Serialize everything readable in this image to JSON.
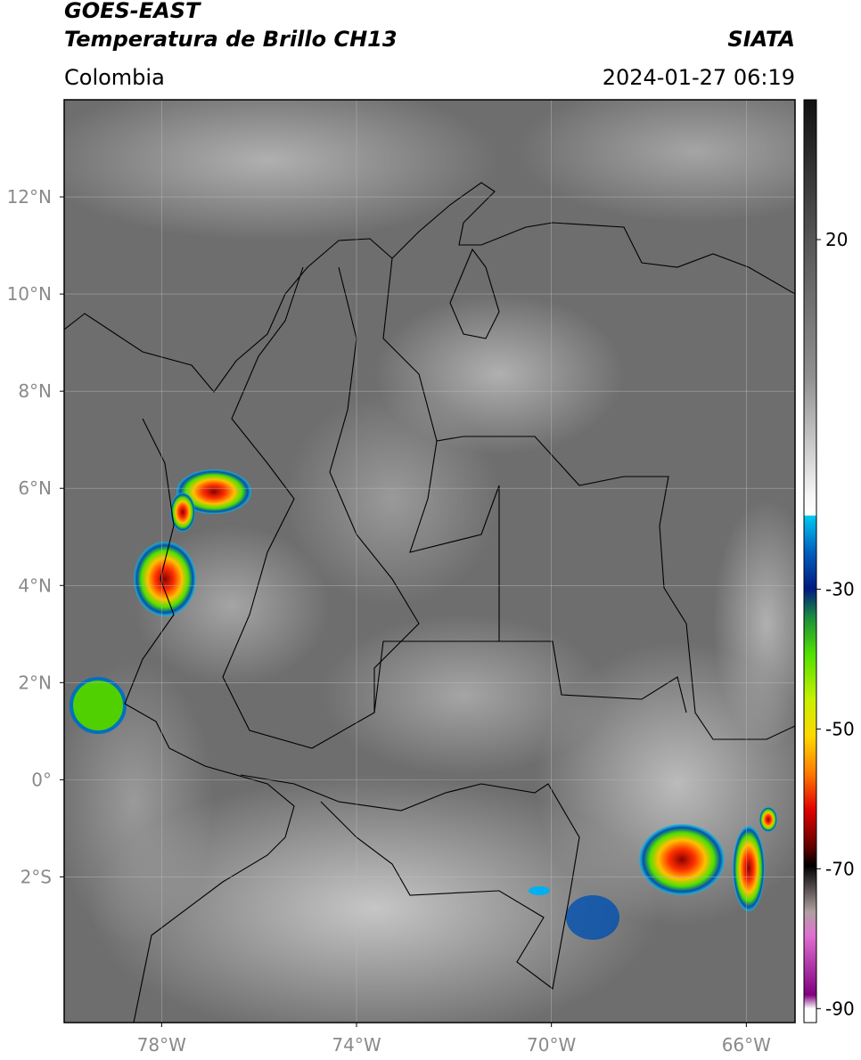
{
  "chart_data": {
    "type": "map",
    "title": "GOES-EAST",
    "subtitle": "Temperatura de Brillo CH13",
    "source": "SIATA",
    "region": "Colombia",
    "datetime": "2024-01-27 06:19",
    "xlim": [
      -80,
      -65
    ],
    "ylim": [
      -5,
      14
    ],
    "xticks": [
      {
        "value": -78,
        "label": "78°W"
      },
      {
        "value": -74,
        "label": "74°W"
      },
      {
        "value": -70,
        "label": "70°W"
      },
      {
        "value": -66,
        "label": "66°W"
      }
    ],
    "yticks": [
      {
        "value": 12,
        "label": "12°N"
      },
      {
        "value": 10,
        "label": "10°N"
      },
      {
        "value": 8,
        "label": "8°N"
      },
      {
        "value": 6,
        "label": "6°N"
      },
      {
        "value": 4,
        "label": "4°N"
      },
      {
        "value": 2,
        "label": "2°N"
      },
      {
        "value": 0,
        "label": "0°"
      },
      {
        "value": -2,
        "label": "2°S"
      }
    ],
    "grid": true,
    "colorbar": {
      "lim": [
        -92,
        40
      ],
      "ticks": [
        20,
        -30,
        -50,
        -70,
        -90
      ]
    }
  }
}
